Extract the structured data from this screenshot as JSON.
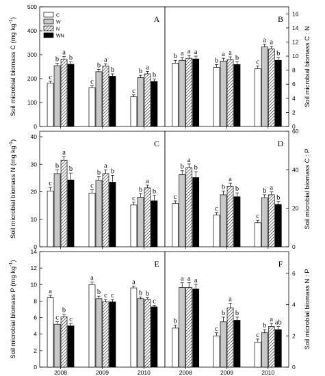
{
  "chart_data": {
    "type": "bar",
    "categories": [
      "2008",
      "2009",
      "2010"
    ],
    "legend": {
      "position": "top-left",
      "entries": [
        {
          "name": "C",
          "fill": "#ffffff",
          "pattern": "none"
        },
        {
          "name": "W",
          "fill": "#c8c8c8",
          "pattern": "none"
        },
        {
          "name": "N",
          "fill": "#ffffff",
          "pattern": "hatch"
        },
        {
          "name": "WN",
          "fill": "#000000",
          "pattern": "none"
        }
      ]
    },
    "panels": [
      {
        "letter": "A",
        "ylabel": "Soil microbial biomass C (mg kg-1)",
        "ylabel_parts": [
          "Soil microbial biomass C (mg kg",
          "-1",
          ")"
        ],
        "ylim": [
          0,
          500
        ],
        "yticks": [
          "0",
          "100",
          "200",
          "300",
          "400",
          "500"
        ],
        "axis_side": "left",
        "series": [
          {
            "name": "C",
            "values": [
              181,
              162,
              124
            ],
            "errors": [
              8,
              8,
              8
            ],
            "sig": [
              "c",
              "c",
              "c"
            ]
          },
          {
            "name": "W",
            "values": [
              254,
              229,
              204
            ],
            "errors": [
              10,
              10,
              10
            ],
            "sig": [
              "b",
              "b",
              "b"
            ]
          },
          {
            "name": "N",
            "values": [
              281,
              252,
              220
            ],
            "errors": [
              12,
              10,
              10
            ],
            "sig": [
              "a",
              "a",
              "a"
            ]
          },
          {
            "name": "WN",
            "values": [
              260,
              210,
              188
            ],
            "errors": [
              10,
              10,
              10
            ],
            "sig": [
              "b",
              "b",
              "b"
            ]
          }
        ]
      },
      {
        "letter": "B",
        "ylabel": "Soil microbial biomass C : N",
        "ylim": [
          0,
          17
        ],
        "yticks": [
          "0",
          "2",
          "4",
          "6",
          "8",
          "10",
          "12",
          "14",
          "16"
        ],
        "axis_side": "right",
        "series": [
          {
            "name": "C",
            "values": [
              9.0,
              8.4,
              8.2
            ],
            "errors": [
              0.4,
              0.4,
              0.4
            ],
            "sig": [
              "b",
              "b",
              "c"
            ]
          },
          {
            "name": "W",
            "values": [
              9.4,
              9.3,
              11.3
            ],
            "errors": [
              0.4,
              0.4,
              0.4
            ],
            "sig": [
              "a",
              "a",
              "a"
            ]
          },
          {
            "name": "N",
            "values": [
              9.7,
              9.5,
              11.0
            ],
            "errors": [
              0.4,
              0.4,
              0.4
            ],
            "sig": [
              "a",
              "a",
              "a"
            ]
          },
          {
            "name": "WN",
            "values": [
              9.6,
              8.8,
              9.4
            ],
            "errors": [
              0.4,
              0.4,
              0.4
            ],
            "sig": [
              "a",
              "b",
              "b"
            ]
          }
        ]
      },
      {
        "letter": "C",
        "ylabel": "Soil microbial biomass N  (mg kg-1)",
        "ylabel_parts": [
          "Soil microbial biomass N  (mg kg",
          "-1",
          ")"
        ],
        "ylim": [
          0,
          42
        ],
        "yticks": [
          "0",
          "10",
          "20",
          "30",
          "40"
        ],
        "axis_side": "left",
        "series": [
          {
            "name": "C",
            "values": [
              20.3,
              19.5,
              15.2
            ],
            "errors": [
              1.3,
              1.2,
              1.0
            ],
            "sig": [
              "c",
              "c",
              "c"
            ]
          },
          {
            "name": "W",
            "values": [
              26.6,
              24.2,
              18.0
            ],
            "errors": [
              1.3,
              1.3,
              1.3
            ],
            "sig": [
              "b",
              "b",
              "b"
            ]
          },
          {
            "name": "N",
            "values": [
              31.5,
              26.6,
              21.4
            ],
            "errors": [
              1.3,
              1.3,
              1.0
            ],
            "sig": [
              "a",
              "a",
              "a"
            ]
          },
          {
            "name": "WN",
            "values": [
              24.3,
              23.5,
              16.7
            ],
            "errors": [
              2.5,
              2.5,
              2.0
            ],
            "sig": [
              "b",
              "b",
              "b"
            ]
          }
        ]
      },
      {
        "letter": "D",
        "ylabel": "Soil microbial biomass C : P",
        "ylim": [
          0,
          60
        ],
        "yticks": [
          "0",
          "20",
          "40",
          "60"
        ],
        "axis_side": "right",
        "series": [
          {
            "name": "C",
            "values": [
              22.5,
              16.5,
              12.5
            ],
            "errors": [
              1.3,
              1.3,
              1.3
            ],
            "sig": [
              "c",
              "c",
              "c"
            ]
          },
          {
            "name": "W",
            "values": [
              37.5,
              27.0,
              25.5
            ],
            "errors": [
              2.0,
              2.0,
              1.5
            ],
            "sig": [
              "b",
              "b",
              "b"
            ]
          },
          {
            "name": "N",
            "values": [
              41.0,
              31.5,
              27.0
            ],
            "errors": [
              2.0,
              1.5,
              1.5
            ],
            "sig": [
              "a",
              "a",
              "a"
            ]
          },
          {
            "name": "WN",
            "values": [
              36.0,
              26.0,
              22.0
            ],
            "errors": [
              3.0,
              2.0,
              1.5
            ],
            "sig": [
              "b",
              "b",
              "b"
            ]
          }
        ]
      },
      {
        "letter": "E",
        "ylabel": "Soil microbial biomass P (mg kg-1)",
        "ylabel_parts": [
          "Soil microbial biomass P (mg kg",
          "-1",
          ")"
        ],
        "ylim": [
          0,
          14
        ],
        "yticks": [
          "0",
          "2",
          "4",
          "6",
          "8",
          "10",
          "12",
          "14"
        ],
        "axis_side": "left",
        "series": [
          {
            "name": "C",
            "values": [
              8.4,
              10.0,
              9.6
            ],
            "errors": [
              0.3,
              0.3,
              0.2
            ],
            "sig": [
              "a",
              "a",
              "a"
            ]
          },
          {
            "name": "W",
            "values": [
              5.2,
              8.3,
              8.3
            ],
            "errors": [
              0.3,
              0.3,
              0.2
            ],
            "sig": [
              "c",
              "b",
              "b"
            ]
          },
          {
            "name": "N",
            "values": [
              6.1,
              7.9,
              8.2
            ],
            "errors": [
              0.3,
              0.3,
              0.2
            ],
            "sig": [
              "b",
              "c",
              "b"
            ]
          },
          {
            "name": "WN",
            "values": [
              5.0,
              7.9,
              7.3
            ],
            "errors": [
              0.3,
              0.3,
              0.2
            ],
            "sig": [
              "c",
              "c",
              "c"
            ]
          }
        ]
      },
      {
        "letter": "F",
        "ylabel": "Soil microbial biomass N : P",
        "ylim": [
          0,
          7.4
        ],
        "yticks": [
          "0",
          "2",
          "4",
          "6"
        ],
        "axis_side": "right",
        "series": [
          {
            "name": "C",
            "values": [
              2.5,
              2.0,
              1.6
            ],
            "errors": [
              0.2,
              0.2,
              0.2
            ],
            "sig": [
              "b",
              "c",
              "c"
            ]
          },
          {
            "name": "W",
            "values": [
              5.1,
              2.9,
              2.2
            ],
            "errors": [
              0.3,
              0.3,
              0.2
            ],
            "sig": [
              "a",
              "b",
              "b"
            ]
          },
          {
            "name": "N",
            "values": [
              5.1,
              3.8,
              2.6
            ],
            "errors": [
              0.3,
              0.3,
              0.2
            ],
            "sig": [
              "a",
              "a",
              "a"
            ]
          },
          {
            "name": "WN",
            "values": [
              5.0,
              3.0,
              2.4
            ],
            "errors": [
              0.3,
              0.2,
              0.2
            ],
            "sig": [
              "a",
              "b",
              "ab"
            ]
          }
        ]
      }
    ]
  }
}
